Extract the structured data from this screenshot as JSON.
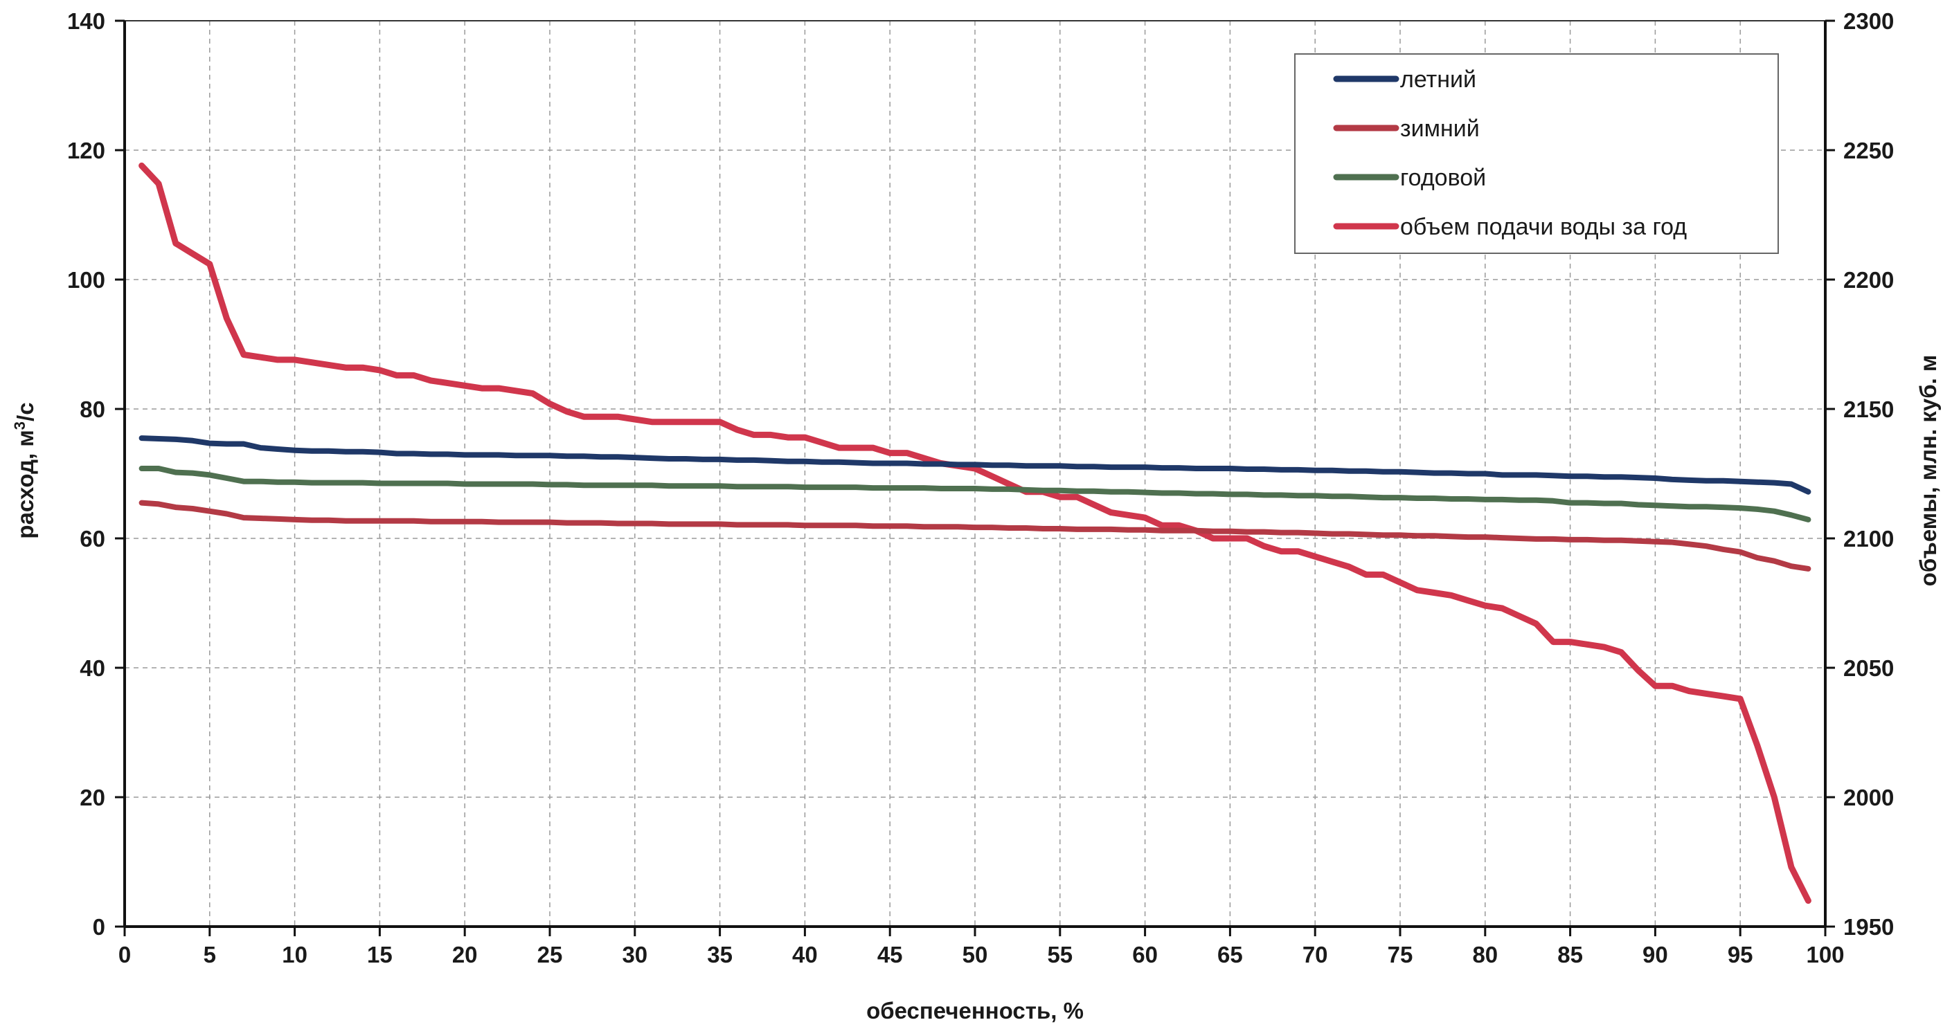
{
  "chart_data": {
    "type": "line",
    "xlabel": "обеспеченность, %",
    "ylabel_left": "расход, м",
    "ylabel_left_sup": "3",
    "ylabel_left_tail": "/с",
    "ylabel_right": "объемы, млн. куб. м",
    "xlim": [
      0,
      100
    ],
    "ylim_left": [
      0,
      140
    ],
    "ylim_right": [
      1950,
      2300
    ],
    "x_ticks": [
      "0",
      "5",
      "10",
      "15",
      "20",
      "25",
      "30",
      "35",
      "40",
      "45",
      "50",
      "55",
      "60",
      "65",
      "70",
      "75",
      "80",
      "85",
      "90",
      "95",
      "100"
    ],
    "y_left_ticks": [
      "0",
      "20",
      "40",
      "60",
      "80",
      "100",
      "120",
      "140"
    ],
    "y_right_ticks": [
      "1950",
      "2000",
      "2050",
      "2100",
      "2150",
      "2200",
      "2250",
      "2300"
    ],
    "grid": true,
    "legend_position": "top-right",
    "x": [
      1,
      2,
      3,
      4,
      5,
      6,
      7,
      8,
      9,
      10,
      11,
      12,
      13,
      14,
      15,
      16,
      17,
      18,
      19,
      20,
      21,
      22,
      23,
      24,
      25,
      26,
      27,
      28,
      29,
      30,
      31,
      32,
      33,
      34,
      35,
      36,
      37,
      38,
      39,
      40,
      41,
      42,
      43,
      44,
      45,
      46,
      47,
      48,
      49,
      50,
      51,
      52,
      53,
      54,
      55,
      56,
      57,
      58,
      59,
      60,
      61,
      62,
      63,
      64,
      65,
      66,
      67,
      68,
      69,
      70,
      71,
      72,
      73,
      74,
      75,
      76,
      77,
      78,
      79,
      80,
      81,
      82,
      83,
      84,
      85,
      86,
      87,
      88,
      89,
      90,
      91,
      92,
      93,
      94,
      95,
      96,
      97,
      98,
      99
    ],
    "series": [
      {
        "name": "летний",
        "axis": "left",
        "color": "#1f3868",
        "values": [
          75.5,
          75.4,
          75.3,
          75.1,
          74.7,
          74.6,
          74.6,
          74.0,
          73.8,
          73.6,
          73.5,
          73.5,
          73.4,
          73.4,
          73.3,
          73.1,
          73.1,
          73.0,
          73.0,
          72.9,
          72.9,
          72.9,
          72.8,
          72.8,
          72.8,
          72.7,
          72.7,
          72.6,
          72.6,
          72.5,
          72.4,
          72.3,
          72.3,
          72.2,
          72.2,
          72.1,
          72.1,
          72.0,
          71.9,
          71.9,
          71.8,
          71.8,
          71.7,
          71.6,
          71.6,
          71.6,
          71.5,
          71.5,
          71.4,
          71.4,
          71.3,
          71.3,
          71.2,
          71.2,
          71.2,
          71.1,
          71.1,
          71.0,
          71.0,
          71.0,
          70.9,
          70.9,
          70.8,
          70.8,
          70.8,
          70.7,
          70.7,
          70.6,
          70.6,
          70.5,
          70.5,
          70.4,
          70.4,
          70.3,
          70.3,
          70.2,
          70.1,
          70.1,
          70.0,
          70.0,
          69.8,
          69.8,
          69.8,
          69.7,
          69.6,
          69.6,
          69.5,
          69.5,
          69.4,
          69.3,
          69.1,
          69.0,
          68.9,
          68.9,
          68.8,
          68.7,
          68.6,
          68.4,
          67.2
        ]
      },
      {
        "name": "зимний",
        "axis": "left",
        "color": "#b33a45",
        "values": [
          65.5,
          65.3,
          64.8,
          64.6,
          64.2,
          63.8,
          63.2,
          63.1,
          63.0,
          62.9,
          62.8,
          62.8,
          62.7,
          62.7,
          62.7,
          62.7,
          62.7,
          62.6,
          62.6,
          62.6,
          62.6,
          62.5,
          62.5,
          62.5,
          62.5,
          62.4,
          62.4,
          62.4,
          62.3,
          62.3,
          62.3,
          62.2,
          62.2,
          62.2,
          62.2,
          62.1,
          62.1,
          62.1,
          62.1,
          62.0,
          62.0,
          62.0,
          62.0,
          61.9,
          61.9,
          61.9,
          61.8,
          61.8,
          61.8,
          61.7,
          61.7,
          61.6,
          61.6,
          61.5,
          61.5,
          61.4,
          61.4,
          61.4,
          61.3,
          61.3,
          61.2,
          61.2,
          61.2,
          61.1,
          61.1,
          61.0,
          61.0,
          60.9,
          60.9,
          60.8,
          60.7,
          60.7,
          60.6,
          60.5,
          60.5,
          60.4,
          60.4,
          60.3,
          60.2,
          60.2,
          60.1,
          60.0,
          59.9,
          59.9,
          59.8,
          59.8,
          59.7,
          59.7,
          59.6,
          59.5,
          59.4,
          59.1,
          58.8,
          58.3,
          57.9,
          57.0,
          56.5,
          55.7,
          55.3
        ]
      },
      {
        "name": "годовой",
        "axis": "left",
        "color": "#4f7050",
        "values": [
          70.8,
          70.8,
          70.2,
          70.1,
          69.8,
          69.3,
          68.8,
          68.8,
          68.7,
          68.7,
          68.6,
          68.6,
          68.6,
          68.6,
          68.5,
          68.5,
          68.5,
          68.5,
          68.5,
          68.4,
          68.4,
          68.4,
          68.4,
          68.4,
          68.3,
          68.3,
          68.2,
          68.2,
          68.2,
          68.2,
          68.2,
          68.1,
          68.1,
          68.1,
          68.1,
          68.0,
          68.0,
          68.0,
          68.0,
          67.9,
          67.9,
          67.9,
          67.9,
          67.8,
          67.8,
          67.8,
          67.8,
          67.7,
          67.7,
          67.7,
          67.6,
          67.6,
          67.5,
          67.4,
          67.4,
          67.3,
          67.3,
          67.2,
          67.2,
          67.1,
          67.0,
          67.0,
          66.9,
          66.9,
          66.8,
          66.8,
          66.7,
          66.7,
          66.6,
          66.6,
          66.5,
          66.5,
          66.4,
          66.3,
          66.3,
          66.2,
          66.2,
          66.1,
          66.1,
          66.0,
          66.0,
          65.9,
          65.9,
          65.8,
          65.5,
          65.5,
          65.4,
          65.4,
          65.2,
          65.1,
          65.0,
          64.9,
          64.9,
          64.8,
          64.7,
          64.5,
          64.2,
          63.6,
          62.9
        ]
      },
      {
        "name": "объем подачи воды за год",
        "axis": "right",
        "color": "#d0364c",
        "values": [
          2244,
          2237,
          2214,
          2210,
          2206,
          2185,
          2171,
          2170,
          2169,
          2169,
          2168,
          2167,
          2166,
          2166,
          2165,
          2163,
          2163,
          2161,
          2160,
          2159,
          2158,
          2158,
          2157,
          2156,
          2152,
          2149,
          2147,
          2147,
          2147,
          2146,
          2145,
          2145,
          2145,
          2145,
          2145,
          2142,
          2140,
          2140,
          2139,
          2139,
          2137,
          2135,
          2135,
          2135,
          2133,
          2133,
          2131,
          2129,
          2128,
          2127,
          2124,
          2121,
          2118,
          2118,
          2116,
          2116,
          2113,
          2110,
          2109,
          2108,
          2105,
          2105,
          2103,
          2100,
          2100,
          2100,
          2097,
          2095,
          2095,
          2093,
          2091,
          2089,
          2086,
          2086,
          2083,
          2080,
          2079,
          2078,
          2076,
          2074,
          2073,
          2070,
          2067,
          2060,
          2060,
          2059,
          2058,
          2056,
          2049,
          2043,
          2043,
          2041,
          2040,
          2039,
          2038,
          2020,
          2000,
          1973,
          1960
        ]
      }
    ]
  }
}
